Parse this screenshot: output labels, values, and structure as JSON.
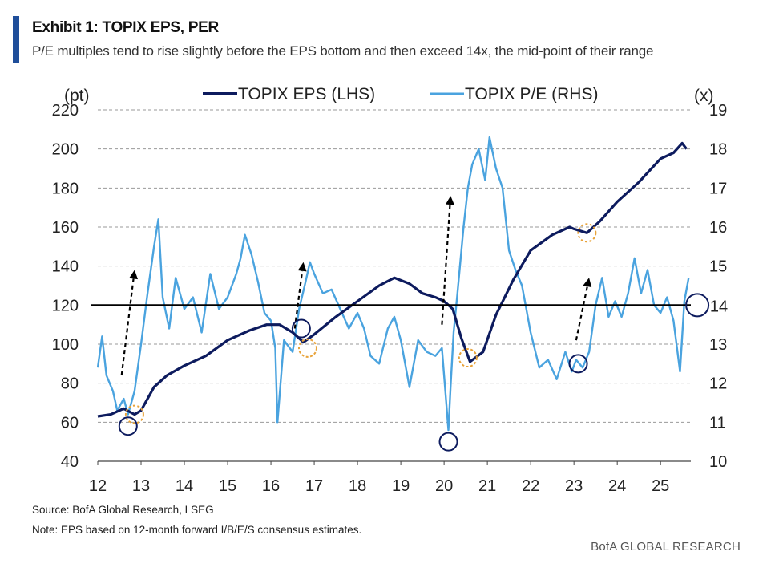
{
  "header": {
    "title": "Exhibit 1: TOPIX EPS, PER",
    "subtitle": "P/E multiples tend to rise slightly before the EPS bottom and then exceed 14x, the mid-point of their range"
  },
  "footer": {
    "source": "Source: BofA Global Research, LSEG",
    "note": "Note: EPS based on 12-month forward I/B/E/S consensus estimates.",
    "brand": "BofA GLOBAL RESEARCH"
  },
  "colors": {
    "eps": "#0d1b5e",
    "pe": "#4aa3df",
    "accent": "#1f4e9a",
    "bottom_marker": "#e8a33a",
    "circle_marker": "#0d1b5e"
  },
  "chart_data": {
    "type": "line",
    "title": "Exhibit 1: TOPIX EPS, PER",
    "left_axis": {
      "label": "(pt)",
      "min": 40,
      "max": 220,
      "ticks": [
        40,
        60,
        80,
        100,
        120,
        140,
        160,
        180,
        200,
        220
      ]
    },
    "right_axis": {
      "label": "(x)",
      "min": 10,
      "max": 19,
      "ticks": [
        10,
        11,
        12,
        13,
        14,
        15,
        16,
        17,
        18,
        19
      ]
    },
    "x_axis": {
      "min": 2012,
      "max": 2025.7,
      "tick_labels": [
        "12",
        "13",
        "14",
        "15",
        "16",
        "17",
        "18",
        "19",
        "20",
        "21",
        "22",
        "23",
        "24",
        "25"
      ],
      "tick_years": [
        2012,
        2013,
        2014,
        2015,
        2016,
        2017,
        2018,
        2019,
        2020,
        2021,
        2022,
        2023,
        2024,
        2025
      ]
    },
    "grid": "dashed horizontal",
    "legend_position": "top",
    "reference_line": {
      "axis": "right",
      "value": 14,
      "label": "14"
    },
    "series": [
      {
        "name": "TOPIX EPS (LHS)",
        "axis": "left",
        "x": [
          2012.0,
          2012.3,
          2012.6,
          2012.85,
          2013.0,
          2013.3,
          2013.6,
          2014.0,
          2014.5,
          2015.0,
          2015.5,
          2015.9,
          2016.2,
          2016.5,
          2016.75,
          2017.0,
          2017.5,
          2018.0,
          2018.5,
          2018.85,
          2019.2,
          2019.5,
          2019.8,
          2020.0,
          2020.2,
          2020.4,
          2020.6,
          2020.9,
          2021.2,
          2021.6,
          2022.0,
          2022.5,
          2022.9,
          2023.0,
          2023.3,
          2023.6,
          2024.0,
          2024.5,
          2025.0,
          2025.3,
          2025.5,
          2025.6
        ],
        "values": [
          63,
          64,
          67,
          64,
          66,
          78,
          84,
          89,
          94,
          102,
          107,
          110,
          110,
          106,
          101,
          105,
          114,
          122,
          130,
          134,
          131,
          126,
          124,
          122,
          118,
          103,
          91,
          96,
          115,
          133,
          148,
          156,
          160,
          159,
          157,
          163,
          173,
          183,
          195,
          198,
          203,
          200
        ]
      },
      {
        "name": "TOPIX P/E (RHS)",
        "axis": "right",
        "x": [
          2012.0,
          2012.1,
          2012.2,
          2012.35,
          2012.45,
          2012.6,
          2012.7,
          2012.85,
          2013.0,
          2013.15,
          2013.3,
          2013.4,
          2013.5,
          2013.65,
          2013.8,
          2014.0,
          2014.2,
          2014.4,
          2014.6,
          2014.8,
          2015.0,
          2015.2,
          2015.3,
          2015.4,
          2015.55,
          2015.7,
          2015.85,
          2016.0,
          2016.1,
          2016.15,
          2016.3,
          2016.5,
          2016.65,
          2016.8,
          2016.9,
          2017.0,
          2017.2,
          2017.4,
          2017.6,
          2017.8,
          2018.0,
          2018.15,
          2018.3,
          2018.5,
          2018.7,
          2018.85,
          2019.0,
          2019.2,
          2019.4,
          2019.6,
          2019.8,
          2019.95,
          2020.05,
          2020.1,
          2020.15,
          2020.22,
          2020.3,
          2020.45,
          2020.55,
          2020.65,
          2020.8,
          2020.95,
          2021.05,
          2021.2,
          2021.35,
          2021.5,
          2021.65,
          2021.8,
          2022.0,
          2022.2,
          2022.4,
          2022.6,
          2022.8,
          2022.95,
          2023.05,
          2023.2,
          2023.35,
          2023.5,
          2023.65,
          2023.8,
          2023.95,
          2024.1,
          2024.25,
          2024.4,
          2024.55,
          2024.7,
          2024.85,
          2025.0,
          2025.15,
          2025.3,
          2025.45,
          2025.55,
          2025.65
        ],
        "values": [
          12.4,
          13.2,
          12.2,
          11.8,
          11.3,
          11.6,
          11.2,
          11.8,
          13.0,
          14.3,
          15.5,
          16.2,
          14.2,
          13.4,
          14.7,
          13.9,
          14.2,
          13.3,
          14.8,
          13.9,
          14.2,
          14.8,
          15.2,
          15.8,
          15.3,
          14.6,
          13.8,
          13.6,
          12.9,
          11.0,
          13.1,
          12.8,
          13.9,
          14.6,
          15.1,
          14.8,
          14.3,
          14.4,
          13.9,
          13.4,
          13.8,
          13.4,
          12.7,
          12.5,
          13.4,
          13.7,
          13.1,
          11.9,
          13.1,
          12.8,
          12.7,
          12.9,
          11.5,
          10.8,
          11.9,
          13.3,
          14.2,
          16.0,
          17.0,
          17.6,
          18.0,
          17.2,
          18.3,
          17.5,
          17.0,
          15.4,
          14.9,
          14.5,
          13.3,
          12.4,
          12.6,
          12.1,
          12.8,
          12.3,
          12.6,
          12.4,
          12.8,
          14.0,
          14.7,
          13.7,
          14.1,
          13.7,
          14.3,
          15.2,
          14.3,
          14.9,
          14.0,
          13.8,
          14.2,
          13.6,
          12.3,
          14.1,
          14.7
        ]
      }
    ],
    "annotations": [
      {
        "type": "dashed-arrow",
        "from": [
          2012.55,
          12.2
        ],
        "to": [
          2012.85,
          14.9
        ]
      },
      {
        "type": "dashed-arrow",
        "from": [
          2016.55,
          13.4
        ],
        "to": [
          2016.75,
          15.1
        ]
      },
      {
        "type": "dashed-arrow",
        "from": [
          2019.95,
          13.5
        ],
        "to": [
          2020.15,
          16.8
        ]
      },
      {
        "type": "dashed-arrow",
        "from": [
          2023.05,
          13.1
        ],
        "to": [
          2023.35,
          14.7
        ]
      },
      {
        "type": "bottom-marker",
        "at": [
          2012.85,
          64
        ]
      },
      {
        "type": "bottom-marker",
        "at": [
          2016.85,
          98
        ]
      },
      {
        "type": "bottom-marker",
        "at": [
          2020.55,
          93
        ]
      },
      {
        "type": "bottom-marker",
        "at": [
          2023.3,
          157
        ]
      },
      {
        "type": "circle-marker",
        "at": [
          2012.7,
          10.9
        ]
      },
      {
        "type": "circle-marker",
        "at": [
          2016.7,
          13.4
        ]
      },
      {
        "type": "circle-marker",
        "at": [
          2020.1,
          10.5
        ]
      },
      {
        "type": "circle-marker",
        "at": [
          2023.1,
          12.5
        ]
      },
      {
        "type": "circle-marker",
        "at": [
          2025.85,
          14.0
        ]
      }
    ]
  }
}
